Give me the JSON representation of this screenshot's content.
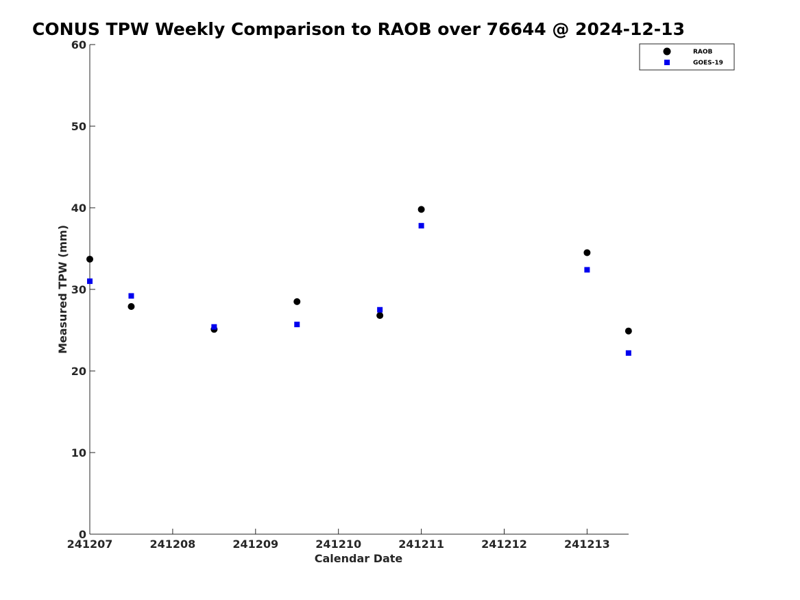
{
  "chart_data": {
    "type": "scatter",
    "title": "CONUS TPW Weekly Comparison to RAOB over 76644 @ 2024-12-13",
    "xlabel": "Calendar Date",
    "ylabel": "Measured TPW (mm)",
    "x_ticks": [
      "241207",
      "241208",
      "241209",
      "241210",
      "241211",
      "241212",
      "241213"
    ],
    "xlim": [
      "241207 00:00",
      "241213 12:00"
    ],
    "ylim": [
      0,
      60
    ],
    "y_ticks": [
      0,
      10,
      20,
      30,
      40,
      50,
      60
    ],
    "grid": false,
    "legend_position": "top-right",
    "series": [
      {
        "name": "RAOB",
        "marker": "circle",
        "color": "#000000",
        "points": [
          {
            "x": "241207 00:00",
            "y": 33.7
          },
          {
            "x": "241207 12:00",
            "y": 27.9
          },
          {
            "x": "241208 12:00",
            "y": 25.1
          },
          {
            "x": "241209 12:00",
            "y": 28.5
          },
          {
            "x": "241210 12:00",
            "y": 26.8
          },
          {
            "x": "241211 00:00",
            "y": 39.8
          },
          {
            "x": "241213 00:00",
            "y": 34.5
          },
          {
            "x": "241213 12:00",
            "y": 24.9
          }
        ]
      },
      {
        "name": "GOES-19",
        "marker": "square",
        "color": "#0000ee",
        "points": [
          {
            "x": "241207 00:00",
            "y": 31.0
          },
          {
            "x": "241207 12:00",
            "y": 29.2
          },
          {
            "x": "241208 12:00",
            "y": 25.4
          },
          {
            "x": "241209 12:00",
            "y": 25.7
          },
          {
            "x": "241210 12:00",
            "y": 27.5
          },
          {
            "x": "241211 00:00",
            "y": 37.8
          },
          {
            "x": "241213 00:00",
            "y": 32.4
          },
          {
            "x": "241213 12:00",
            "y": 22.2
          }
        ]
      }
    ]
  }
}
